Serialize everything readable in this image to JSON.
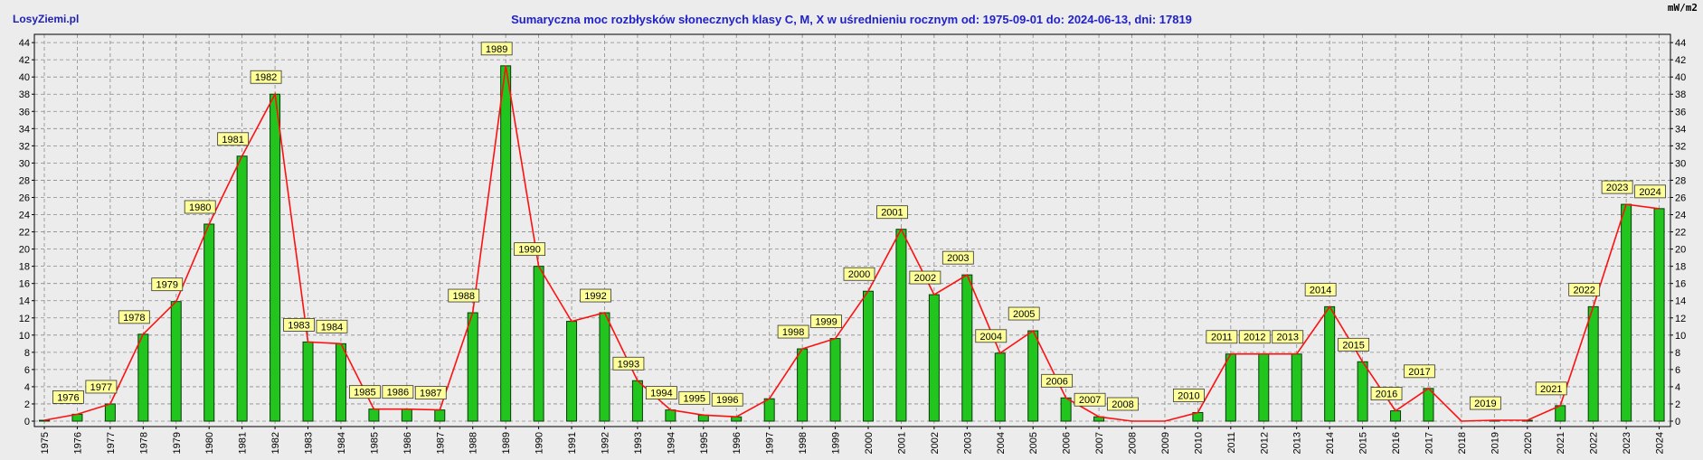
{
  "brand": "LosyZiemi.pl",
  "title": "Sumaryczna moc rozbłysków słonecznych klasy C, M, X w uśrednieniu rocznym od: 1975-09-01 do: 2024-06-13, dni: 17819",
  "unit": "mW/m2",
  "colors": {
    "bar": "#22c41e",
    "bar_border": "#0a3a0a",
    "line": "#ff1010",
    "label_bg": "#ffff99",
    "grid": "#8a8a8a",
    "title": "#2121c8",
    "brand": "#1f1fb0"
  },
  "chart_data": {
    "type": "bar",
    "line_overlay": true,
    "grid": true,
    "ylim": [
      0,
      45
    ],
    "yticks": [
      0,
      2,
      4,
      6,
      8,
      10,
      12,
      14,
      16,
      18,
      20,
      22,
      24,
      26,
      28,
      30,
      32,
      34,
      36,
      38,
      40,
      42,
      44
    ],
    "categories": [
      "1975",
      "1976",
      "1977",
      "1978",
      "1979",
      "1980",
      "1981",
      "1982",
      "1983",
      "1984",
      "1985",
      "1986",
      "1987",
      "1988",
      "1989",
      "1990",
      "1991",
      "1992",
      "1993",
      "1994",
      "1995",
      "1996",
      "1997",
      "1998",
      "1999",
      "2000",
      "2001",
      "2002",
      "2003",
      "2004",
      "2005",
      "2006",
      "2007",
      "2008",
      "2009",
      "2010",
      "2011",
      "2012",
      "2013",
      "2014",
      "2015",
      "2016",
      "2017",
      "2018",
      "2019",
      "2020",
      "2021",
      "2022",
      "2023",
      "2024"
    ],
    "values": [
      0.1,
      0.8,
      2.0,
      10.1,
      13.9,
      22.9,
      30.8,
      38.0,
      9.2,
      9.0,
      1.4,
      1.4,
      1.3,
      12.6,
      41.3,
      18.0,
      11.6,
      12.6,
      4.7,
      1.3,
      0.7,
      0.5,
      2.6,
      8.4,
      9.6,
      15.1,
      22.3,
      14.7,
      17.0,
      7.9,
      10.5,
      2.7,
      0.5,
      0.0,
      0.0,
      1.0,
      7.8,
      7.8,
      7.8,
      13.3,
      6.9,
      1.2,
      3.8,
      0.0,
      0.1,
      0.1,
      1.8,
      13.3,
      25.2,
      24.7
    ],
    "labeled": [
      "1976",
      "1977",
      "1978",
      "1979",
      "1980",
      "1981",
      "1982",
      "1983",
      "1984",
      "1985",
      "1986",
      "1987",
      "1988",
      "1989",
      "1990",
      "1992",
      "1993",
      "1994",
      "1995",
      "1996",
      "1998",
      "1999",
      "2000",
      "2001",
      "2002",
      "2003",
      "2004",
      "2005",
      "2006",
      "2007",
      "2008",
      "2010",
      "2011",
      "2012",
      "2013",
      "2014",
      "2015",
      "2016",
      "2017",
      "2019",
      "2021",
      "2022",
      "2023",
      "2024"
    ]
  }
}
